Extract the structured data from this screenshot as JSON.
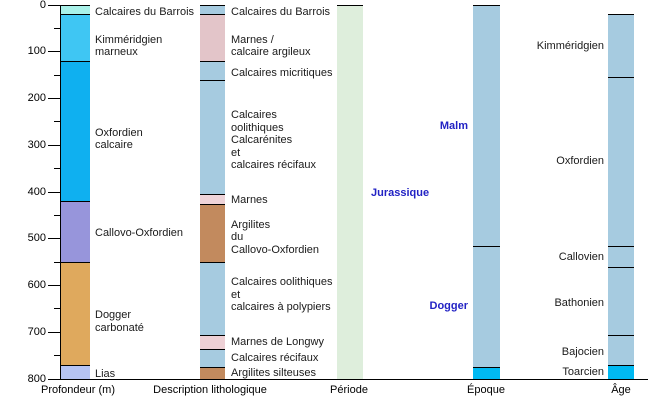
{
  "figure": {
    "kind": "stratigraphic log, Jurassic series, French labels",
    "colors": {
      "background": "#ffffff",
      "line": "#000000",
      "text": "#1a1a1a",
      "period_label_blue": "#2222c4",
      "pale_turquoise": "#a9f1e9",
      "light_azure": "#3fc6f3",
      "azure": "#0fb0f0",
      "periwinkle": "#9795db",
      "tan": "#dfa95d",
      "pale_periwinkle": "#b6c4f3",
      "litho_blue": "#a6cbe0",
      "litho_pink": "#e3c5c9",
      "litho_brown": "#c28a5e",
      "pale_green": "#deeedc",
      "bright_cyan": "#00b9f2"
    }
  },
  "chart_data": {
    "type": "bar",
    "subtype": "stratigraphic-columns",
    "depth_axis": {
      "title": "Profondeur (m)",
      "min": 0,
      "max": 800,
      "major_ticks": [
        0,
        100,
        200,
        300,
        400,
        500,
        600,
        700,
        800
      ],
      "minor_ticks": [
        50,
        150,
        250,
        350,
        450,
        550,
        650,
        750
      ],
      "grid": false
    },
    "columns": [
      {
        "key": "profondeur",
        "axis_title": "Profondeur (m)",
        "label_style": "normal",
        "segments": [
          {
            "from": 0,
            "to": 20,
            "color": "#a9f1e9",
            "name": "Calcaires du Barrois"
          },
          {
            "from": 20,
            "to": 120,
            "color": "#3fc6f3",
            "name": "Kimméridgien marneux"
          },
          {
            "from": 120,
            "to": 420,
            "color": "#0fb0f0",
            "name": "Oxfordien calcaire"
          },
          {
            "from": 420,
            "to": 550,
            "color": "#9795db",
            "name": "Callovo-Oxfordien"
          },
          {
            "from": 550,
            "to": 770,
            "color": "#dfa95d",
            "name": "Dogger carbonaté"
          },
          {
            "from": 770,
            "to": 800,
            "color": "#b6c4f3",
            "name": "Lias"
          }
        ],
        "labels": [
          {
            "lines": [
              "Calcaires du Barrois"
            ],
            "at": 15
          },
          {
            "lines": [
              "Kimméridgien",
              "marneux"
            ],
            "at": 88
          },
          {
            "lines": [
              "Oxfordien",
              "calcaire"
            ],
            "at": 287
          },
          {
            "lines": [
              "Callovo-Oxfordien"
            ],
            "at": 488
          },
          {
            "lines": [
              "Dogger",
              "carbonaté"
            ],
            "at": 678
          },
          {
            "lines": [
              "Lias"
            ],
            "at": 789
          }
        ]
      },
      {
        "key": "lithologie",
        "axis_title": "Description lithologique",
        "label_style": "normal",
        "segments": [
          {
            "from": 0,
            "to": 20,
            "color": "#a6cbe0",
            "name": "Calcaires du Barrois"
          },
          {
            "from": 20,
            "to": 120,
            "color": "#e3c5c9",
            "name": "Marnes / calcaire argileux"
          },
          {
            "from": 120,
            "to": 160,
            "color": "#a6cbe0",
            "name": "Calcaires micritiques"
          },
          {
            "from": 160,
            "to": 405,
            "color": "#a6cbe0",
            "name": "Calcaires oolithiques, Calcarénites et calcaires récifaux"
          },
          {
            "from": 405,
            "to": 425,
            "color": "#efd4d9",
            "name": "Marnes"
          },
          {
            "from": 425,
            "to": 550,
            "color": "#c28a5e",
            "name": "Argilites du Callovo-Oxfordien"
          },
          {
            "from": 550,
            "to": 705,
            "color": "#a6cbe0",
            "name": "Calcaires oolithiques et calcaires à polypiers"
          },
          {
            "from": 705,
            "to": 735,
            "color": "#edd0d5",
            "name": "Marnes de Longwy"
          },
          {
            "from": 735,
            "to": 775,
            "color": "#a6cbe0",
            "name": "Calcaires récifaux"
          },
          {
            "from": 775,
            "to": 800,
            "color": "#c28a5e",
            "name": "Argilites silteuses"
          }
        ],
        "labels": [
          {
            "lines": [
              "Calcaires du Barrois"
            ],
            "at": 15
          },
          {
            "lines": [
              "Marnes /",
              "calcaire argileux"
            ],
            "at": 88
          },
          {
            "lines": [
              "Calcaires micritiques"
            ],
            "at": 145
          },
          {
            "lines": [
              "Calcaires",
              "oolithiques",
              "Calcarénites",
              "et",
              "calcaires récifaux"
            ],
            "at": 290
          },
          {
            "lines": [
              "Marnes"
            ],
            "at": 417
          },
          {
            "lines": [
              "Argilites",
              "du",
              "Callovo-Oxfordien"
            ],
            "at": 497
          },
          {
            "lines": [
              "Calcaires oolithiques",
              "et",
              "calcaires à polypiers"
            ],
            "at": 620
          },
          {
            "lines": [
              "Marnes de Longwy"
            ],
            "at": 721
          },
          {
            "lines": [
              "Calcaires récifaux"
            ],
            "at": 755
          },
          {
            "lines": [
              "Argilites silteuses"
            ],
            "at": 787
          }
        ]
      },
      {
        "key": "periode",
        "axis_title": "Période",
        "label_style": "period",
        "segments": [
          {
            "from": 0,
            "to": 800,
            "color": "#deeedc",
            "name": "Jurassique"
          }
        ],
        "labels": [
          {
            "lines": [
              "Jurassique"
            ],
            "at": 403
          }
        ]
      },
      {
        "key": "epoque",
        "axis_title": "Époque",
        "label_style": "period",
        "segments": [
          {
            "from": 0,
            "to": 515,
            "color": "#a6cbe0",
            "name": "Malm"
          },
          {
            "from": 515,
            "to": 775,
            "color": "#a6cbe0",
            "name": "Dogger"
          },
          {
            "from": 775,
            "to": 800,
            "color": "#00b9f2",
            "name": ""
          }
        ],
        "labels": [
          {
            "lines": [
              "Malm"
            ],
            "at": 260
          },
          {
            "lines": [
              "Dogger"
            ],
            "at": 645
          }
        ]
      },
      {
        "key": "age",
        "axis_title": "Âge",
        "label_style": "normal",
        "segments": [
          {
            "from": 20,
            "to": 155,
            "color": "#a6cbe0",
            "name": "Kimméridgien"
          },
          {
            "from": 155,
            "to": 515,
            "color": "#a6cbe0",
            "name": "Oxfordien"
          },
          {
            "from": 515,
            "to": 560,
            "color": "#a6cbe0",
            "name": "Callovien"
          },
          {
            "from": 560,
            "to": 705,
            "color": "#a6cbe0",
            "name": "Bathonien"
          },
          {
            "from": 705,
            "to": 770,
            "color": "#a6cbe0",
            "name": "Bajocien"
          },
          {
            "from": 770,
            "to": 800,
            "color": "#00b9f2",
            "name": "Toarcien"
          }
        ],
        "labels": [
          {
            "lines": [
              "Kimméridgien"
            ],
            "at": 88
          },
          {
            "lines": [
              "Oxfordien"
            ],
            "at": 335
          },
          {
            "lines": [
              "Callovien"
            ],
            "at": 540
          },
          {
            "lines": [
              "Bathonien"
            ],
            "at": 637
          },
          {
            "lines": [
              "Bajocien"
            ],
            "at": 742
          },
          {
            "lines": [
              "Toarcien"
            ],
            "at": 785
          }
        ]
      }
    ]
  }
}
